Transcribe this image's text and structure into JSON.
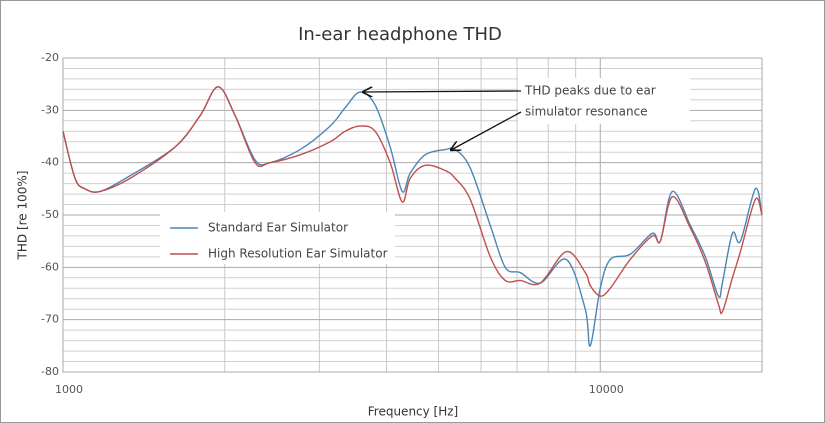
{
  "chart_data": {
    "type": "line",
    "title": "In-ear headphone THD",
    "x_label": "Frequency [Hz]",
    "y_label": "THD [re 100%]",
    "log_x": true,
    "grid": true,
    "legend_position": "center-left",
    "annotation": [
      "THD peaks due to ear",
      "simulator resonance"
    ],
    "x": [
      1000,
      1053,
      1099,
      1172,
      1333,
      1617,
      1800,
      1944,
      2091,
      2278,
      2430,
      2763,
      3143,
      3351,
      3573,
      3811,
      4064,
      4279,
      4428,
      4722,
      5145,
      5370,
      5727,
      6242,
      6655,
      7097,
      7733,
      8644,
      9378,
      9581,
      10000,
      10438,
      11371,
      12500,
      12935,
      13620,
      14713,
      15690,
      16590,
      16875,
      17618,
      18234,
      19440,
      20000
    ],
    "series": [
      {
        "name": "Standard Ear Simulator",
        "color": "#4a86b5",
        "values": [
          -34,
          -43,
          -45,
          -45.5,
          -42.5,
          -37,
          -31,
          -25.5,
          -31,
          -39.5,
          -40,
          -37.5,
          -33,
          -29.5,
          -26.5,
          -29,
          -37,
          -45.5,
          -42,
          -38.5,
          -37.5,
          -37.5,
          -41,
          -52,
          -60,
          -61,
          -63,
          -58.5,
          -68,
          -75,
          -64,
          -58.5,
          -57.5,
          -53.5,
          -55,
          -45.5,
          -52,
          -58,
          -65.5,
          -63,
          -53.5,
          -55,
          -45,
          -50
        ]
      },
      {
        "name": "High Resolution Ear Simulator",
        "color": "#c0504d",
        "values": [
          -34,
          -43,
          -45,
          -45.5,
          -43,
          -37,
          -31,
          -25.5,
          -31,
          -40,
          -40,
          -38.5,
          -36,
          -34,
          -33,
          -34,
          -40,
          -47.5,
          -43,
          -40.5,
          -41.5,
          -43,
          -47,
          -58,
          -62.5,
          -62.5,
          -63,
          -57,
          -61,
          -63.5,
          -65.5,
          -64,
          -58.5,
          -54,
          -55,
          -46.5,
          -52.5,
          -59,
          -67,
          -68.5,
          -62,
          -57,
          -47,
          -50
        ]
      }
    ],
    "xlim": [
      1000,
      20000
    ],
    "xticks": [
      1000,
      10000
    ],
    "x_minor_ticks": [
      2000,
      3000,
      4000,
      5000,
      6000,
      7000,
      8000,
      9000,
      20000
    ],
    "ylim": [
      -80,
      -20
    ],
    "yticks": [
      -80,
      -70,
      -60,
      -50,
      -40,
      -30,
      -20
    ],
    "y_minor_ticks": [
      -78,
      -76,
      -74,
      -72,
      -68,
      -66,
      -64,
      -62,
      -58,
      -56,
      -54,
      -52,
      -48,
      -46,
      -44,
      -42,
      -38,
      -36,
      -34,
      -32,
      -28,
      -26,
      -24,
      -22
    ]
  }
}
